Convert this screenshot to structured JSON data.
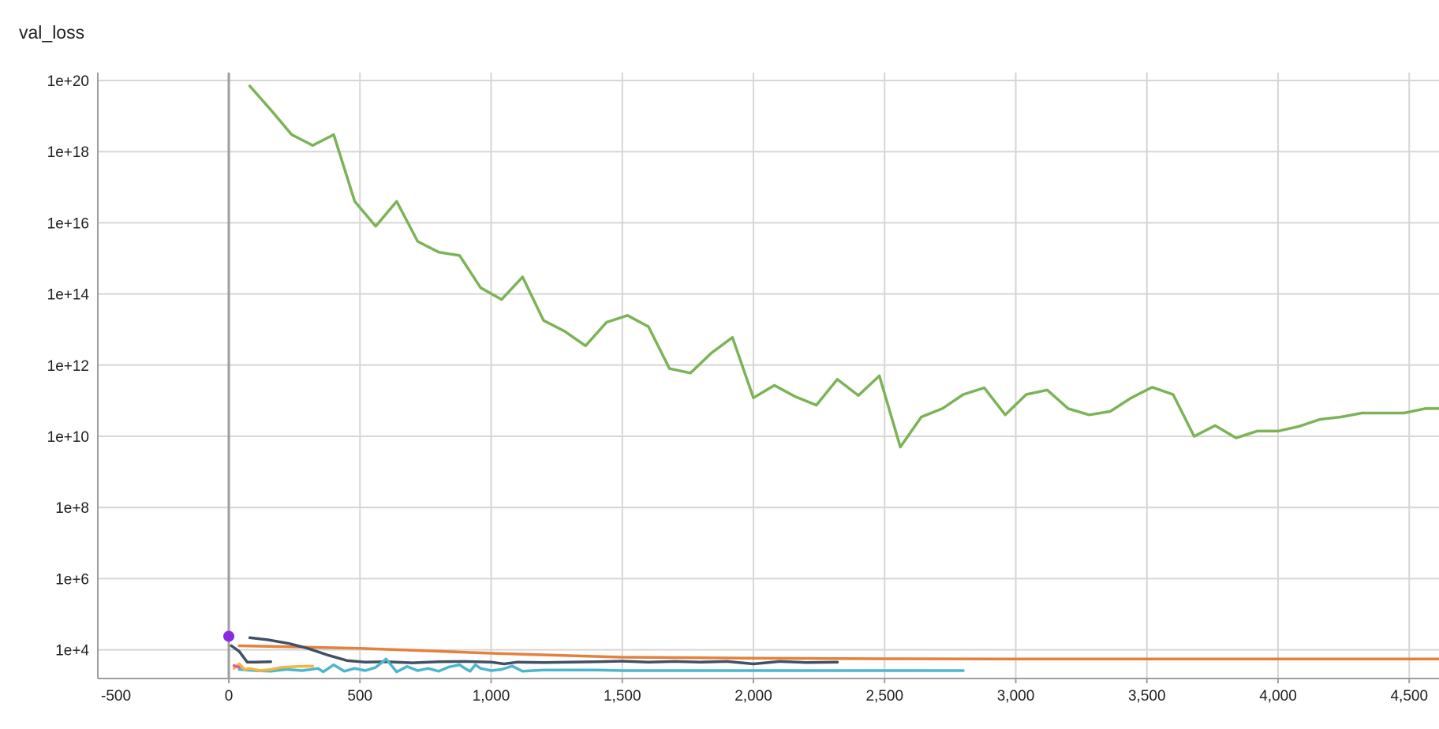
{
  "chart_data": {
    "type": "line",
    "title": "val_loss",
    "y_scale": "log",
    "grid": true,
    "xlim": [
      -500,
      4650
    ],
    "ylim": [
      100,
      1e+20
    ],
    "x_ticks": [
      -500,
      0,
      500,
      1000,
      1500,
      2000,
      2500,
      3000,
      3500,
      4000,
      4500
    ],
    "x_tick_labels": [
      "-500",
      "0",
      "500",
      "1,000",
      "1,500",
      "2,000",
      "2,500",
      "3,000",
      "3,500",
      "4,000",
      "4,500"
    ],
    "y_ticks": [
      10000.0,
      1000000.0,
      100000000.0,
      10000000000.0,
      1000000000000.0,
      100000000000000.0,
      1e+16,
      1e+18,
      1e+20
    ],
    "y_tick_labels": [
      "1e+4",
      "1e+6",
      "1e+8",
      "1e+10",
      "1e+12",
      "1e+14",
      "1e+16",
      "1e+18",
      "1e+20"
    ],
    "series": [
      {
        "color": "#7cb356",
        "x": [
          80,
          160,
          240,
          320,
          400,
          480,
          560,
          640,
          720,
          800,
          880,
          960,
          1040,
          1120,
          1200,
          1280,
          1360,
          1440,
          1520,
          1600,
          1680,
          1760,
          1840,
          1920,
          2000,
          2080,
          2160,
          2240,
          2320,
          2400,
          2480,
          2560,
          2640,
          2720,
          2800,
          2880,
          2960,
          3040,
          3120,
          3200,
          3280,
          3360,
          3440,
          3520,
          3600,
          3680,
          3760,
          3840,
          3920,
          4000,
          4080,
          4160,
          4240,
          4320,
          4400,
          4480,
          4560,
          4650
        ],
        "y": [
          7e+19,
          1.5e+19,
          3e+18,
          1.5e+18,
          3e+18,
          4e+16,
          8000000000000000.0,
          4e+16,
          3000000000000000.0,
          1500000000000000.0,
          1200000000000000.0,
          150000000000000.0,
          70000000000000.0,
          300000000000000.0,
          18000000000000.0,
          9000000000000.0,
          3500000000000.0,
          16000000000000.0,
          25000000000000.0,
          12000000000000.0,
          800000000000.0,
          600000000000.0,
          2200000000000.0,
          6000000000000.0,
          120000000000.0,
          270000000000.0,
          130000000000.0,
          75000000000.0,
          400000000000.0,
          140000000000.0,
          500000000000.0,
          5000000000.0,
          35000000000.0,
          60000000000.0,
          150000000000.0,
          230000000000.0,
          40000000000.0,
          150000000000.0,
          200000000000.0,
          60000000000.0,
          40000000000.0,
          50000000000.0,
          120000000000.0,
          240000000000.0,
          150000000000.0,
          10000000000.0,
          20000000000.0,
          9000000000.0,
          14000000000.0,
          14000000000.0,
          19000000000.0,
          30000000000.0,
          35000000000.0,
          45000000000.0,
          45000000000.0,
          45000000000.0,
          60000000000.0,
          60000000000.0
        ]
      },
      {
        "color": "#e3813d",
        "x": [
          40,
          500,
          1000,
          1500,
          2000,
          2500,
          3000,
          3500,
          4000,
          4650
        ],
        "y": [
          13000.0,
          11000.0,
          8000.0,
          6200.0,
          5800.0,
          5600.0,
          5500.0,
          5500.0,
          5500.0,
          5500.0
        ]
      },
      {
        "color": "#425066",
        "x": [
          80,
          150,
          230,
          300,
          380,
          450,
          520,
          600,
          700,
          800,
          900,
          1000,
          1050,
          1100,
          1200,
          1300,
          1400,
          1500,
          1600,
          1700,
          1800,
          1900,
          2000,
          2100,
          2200,
          2320
        ],
        "y": [
          22000.0,
          19000.0,
          15000.0,
          11000.0,
          7000.0,
          5000.0,
          4500.0,
          4600.0,
          4300.0,
          4600.0,
          4700.0,
          4500.0,
          4000.0,
          4500.0,
          4400.0,
          4500.0,
          4600.0,
          4800.0,
          4500.0,
          4700.0,
          4500.0,
          4700.0,
          4000.0,
          4700.0,
          4400.0,
          4500.0
        ]
      },
      {
        "color": "#425066",
        "x": [
          10,
          40,
          70,
          100,
          160
        ],
        "y": [
          13000.0,
          9000.0,
          4500.0,
          4500.0,
          4600.0
        ]
      },
      {
        "color": "#4db6cf",
        "x": [
          40,
          100,
          160,
          220,
          280,
          340,
          360,
          400,
          440,
          480,
          520,
          560,
          600,
          640,
          680,
          720,
          760,
          800,
          840,
          880,
          900,
          920,
          940,
          960,
          1000,
          1040,
          1080,
          1120,
          1160,
          1200,
          1300,
          1400,
          1500,
          1600,
          1700,
          1800,
          1900,
          2000,
          2100,
          2200,
          2300,
          2400,
          2500,
          2600,
          2700,
          2800
        ],
        "y": [
          2800.0,
          2600.0,
          2500.0,
          2800.0,
          2600.0,
          3000.0,
          2400.0,
          3800.0,
          2500.0,
          3000.0,
          2600.0,
          3200.0,
          5500.0,
          2400.0,
          3400.0,
          2600.0,
          3000.0,
          2500.0,
          3300.0,
          3800.0,
          3000.0,
          2500.0,
          3800.0,
          3000.0,
          2600.0,
          2800.0,
          3500.0,
          2500.0,
          2600.0,
          2700.0,
          2700.0,
          2700.0,
          2600.0,
          2600.0,
          2600.0,
          2600.0,
          2600.0,
          2600.0,
          2600.0,
          2600.0,
          2600.0,
          2600.0,
          2600.0,
          2600.0,
          2600.0,
          2600.0
        ]
      },
      {
        "color": "#f0b840",
        "x": [
          20,
          40,
          60,
          80,
          120,
          160,
          200,
          260,
          320
        ],
        "y": [
          3000.0,
          4000.0,
          2800.0,
          3000.0,
          2600.0,
          2800.0,
          3200.0,
          3400.0,
          3500.0
        ]
      },
      {
        "color": "#e05a9a",
        "x": [
          20,
          40
        ],
        "y": [
          3600.0,
          3200.0
        ]
      },
      {
        "color": "#8a2be2",
        "marker": true,
        "x": [
          0
        ],
        "y": [
          24000.0
        ]
      }
    ]
  }
}
